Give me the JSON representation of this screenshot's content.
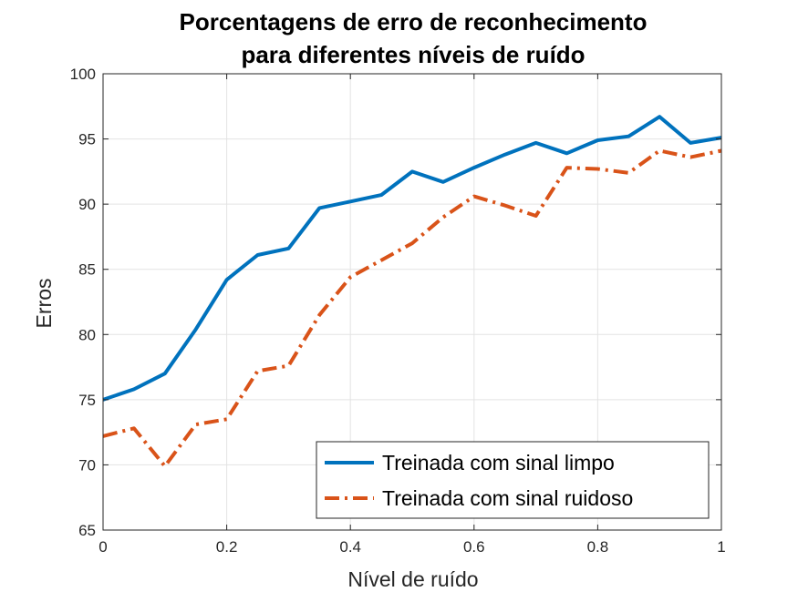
{
  "chart_data": {
    "type": "line",
    "title": [
      "Porcentagens de erro de reconhecimento",
      "para diferentes níveis de ruído"
    ],
    "xlabel": "Nível de ruído",
    "ylabel": "Erros",
    "xlim": [
      0,
      1
    ],
    "ylim": [
      65,
      100
    ],
    "xticks": [
      0,
      0.2,
      0.4,
      0.6,
      0.8,
      1
    ],
    "xtick_labels": [
      "0",
      "0.2",
      "0.4",
      "0.6",
      "0.8",
      "1"
    ],
    "yticks": [
      65,
      70,
      75,
      80,
      85,
      90,
      95,
      100
    ],
    "ytick_labels": [
      "65",
      "70",
      "75",
      "80",
      "85",
      "90",
      "95",
      "100"
    ],
    "grid": true,
    "legend_position": "bottom-right",
    "x": [
      0,
      0.05,
      0.1,
      0.15,
      0.2,
      0.25,
      0.3,
      0.35,
      0.4,
      0.45,
      0.5,
      0.55,
      0.6,
      0.65,
      0.7,
      0.75,
      0.8,
      0.85,
      0.9,
      0.95,
      1
    ],
    "series": [
      {
        "name": "Treinada com sinal limpo",
        "color": "#0072BD",
        "line_style": "solid",
        "values": [
          75.0,
          75.8,
          77.0,
          80.4,
          84.2,
          86.1,
          86.6,
          89.7,
          90.2,
          90.7,
          92.5,
          91.7,
          92.8,
          93.8,
          94.7,
          93.9,
          94.9,
          95.2,
          96.7,
          94.7,
          95.1
        ]
      },
      {
        "name": "Treinada com sinal ruidoso",
        "color": "#D95319",
        "line_style": "dash-dot",
        "values": [
          72.2,
          72.8,
          69.9,
          73.1,
          73.5,
          77.2,
          77.6,
          81.5,
          84.4,
          85.7,
          87.0,
          89.0,
          90.6,
          89.9,
          89.1,
          92.8,
          92.7,
          92.4,
          94.1,
          93.6,
          94.1
        ]
      }
    ]
  }
}
